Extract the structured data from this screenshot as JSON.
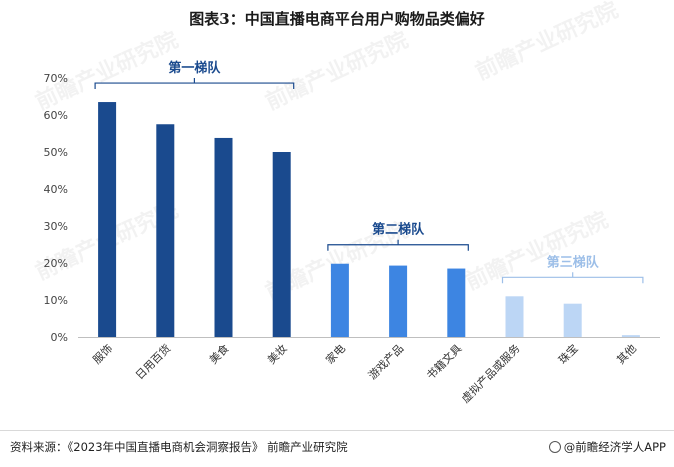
{
  "title": "图表3：中国直播电商平台用户购物品类偏好",
  "source": "资料来源：《2023年中国直播电商机会洞察报告》 前瞻产业研究院",
  "brand": "@前瞻经济学人APP",
  "watermark": "前瞻产业研究院",
  "chart_data": {
    "type": "bar",
    "title": "图表3：中国直播电商平台用户购物品类偏好",
    "xlabel": "",
    "ylabel": "",
    "ylim": [
      0,
      70
    ],
    "yticks": [
      "0%",
      "10%",
      "20%",
      "30%",
      "40%",
      "50%",
      "60%",
      "70%"
    ],
    "grid": false,
    "categories": [
      "服饰",
      "日用百货",
      "美食",
      "美妆",
      "家电",
      "游戏产品",
      "书籍文具",
      "虚拟产品或服务",
      "珠宝",
      "其他"
    ],
    "values": [
      63.5,
      57.5,
      53.8,
      50.0,
      19.8,
      19.3,
      18.5,
      11.0,
      9.0,
      0.5
    ],
    "colors": [
      "#1a4a8e",
      "#1a4a8e",
      "#1a4a8e",
      "#1a4a8e",
      "#3d85e2",
      "#3d85e2",
      "#3d85e2",
      "#bcd6f5",
      "#bcd6f5",
      "#bcd6f5"
    ],
    "groups": [
      {
        "label": "第一梯队",
        "from": 0,
        "to": 3,
        "color": "#1a4a8e"
      },
      {
        "label": "第二梯队",
        "from": 4,
        "to": 6,
        "color": "#1a4a8e"
      },
      {
        "label": "第三梯队",
        "from": 7,
        "to": 9,
        "color": "#9dbfe8"
      }
    ]
  }
}
